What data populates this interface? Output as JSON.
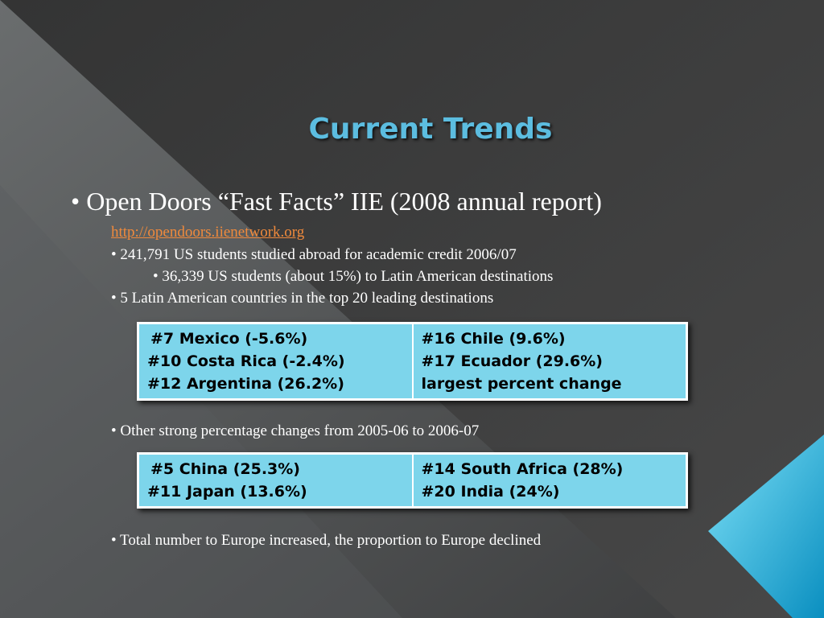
{
  "title": "Current Trends",
  "lines": [
    "• Open Doors “Fast Facts” IIE (2008 annual report)",
    "http://opendoors.iienetwork.org",
    "• 241,791 US students studied abroad for academic credit 2006/07",
    "• 36,339 US students (about 15%) to Latin American destinations",
    "• 5 Latin American countries in the top 20 leading destinations",
    "• Other strong percentage changes from 2005-06 to 2006-07",
    "• Total number to Europe increased, the proportion to Europe declined"
  ],
  "tables": [
    {
      "cells": [
        [
          "#7 Mexico (-5.6%)",
          "#10 Costa Rica (-2.4%)",
          "#12 Argentina (26.2%)"
        ],
        [
          "#16 Chile (9.6%)",
          "#17 Ecuador (29.6%)",
          "largest percent change"
        ]
      ]
    },
    {
      "cells": [
        [
          "#5 China (25.3%)",
          "#11 Japan (13.6%)"
        ],
        [
          "#14 South Africa (28%)",
          "#20 India (24%)"
        ]
      ]
    }
  ]
}
